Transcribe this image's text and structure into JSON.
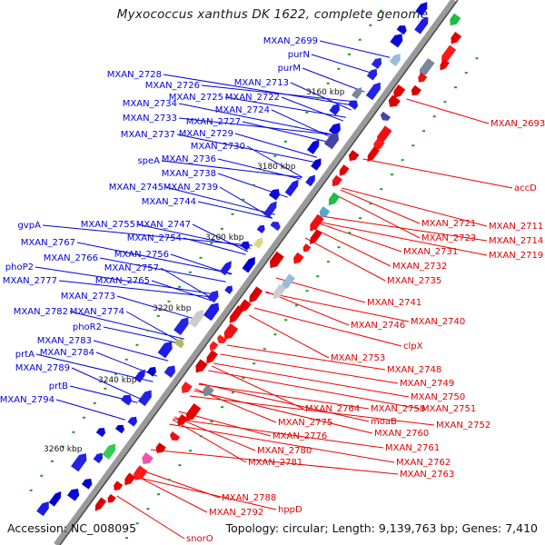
{
  "title": "Myxococcus xanthus DK 1622, complete genome",
  "footer": {
    "accession": "Accession: NC_008095",
    "topology": "Topology: circular; Length: 9,139,763 bp; Genes: 7,410"
  },
  "colors": {
    "forward": "#0000dd",
    "reverse": "#ee0000",
    "backbone": "#8a8a8a",
    "tick": "#229922",
    "cds_fwd": "#1a1ae6",
    "cds_rev": "#e61a1a"
  },
  "kbp_labels": [
    "3160 kbp",
    "3180 kbp",
    "3200 kbp",
    "3220 kbp",
    "3240 kbp",
    "3260 kbp"
  ],
  "left_labels": [
    "MXAN_2699",
    "purN",
    "purM",
    "MXAN_2713",
    "MXAN_2728",
    "MXAN_2726",
    "MXAN_2725",
    "MXAN_2722",
    "MXAN_2724",
    "MXAN_2734",
    "MXAN_2733",
    "MXAN_2727",
    "MXAN_2729",
    "MXAN_2737",
    "MXAN_2730",
    "speA",
    "MXAN_2736",
    "MXAN_2738",
    "MXAN_2745",
    "MXAN_2739",
    "MXAN_2744",
    "gvpA",
    "MXAN_2755",
    "MXAN_2747",
    "MXAN_2767",
    "MXAN_2754",
    "MXAN_2756",
    "MXAN_2766",
    "phoP2",
    "MXAN_2757",
    "MXAN_2777",
    "MXAN_2765",
    "MXAN_2773",
    "MXAN_2782",
    "MXAN_2774",
    "phoR2",
    "MXAN_2783",
    "MXAN_2784",
    "prtA",
    "MXAN_2789",
    "prtB",
    "MXAN_2794"
  ],
  "right_labels": [
    "MXAN_2693",
    "accD",
    "MXAN_2721",
    "MXAN_2711",
    "MXAN_2723",
    "MXAN_2714",
    "MXAN_2731",
    "MXAN_2719",
    "MXAN_2732",
    "MXAN_2735",
    "MXAN_2741",
    "MXAN_2740",
    "MXAN_2746",
    "clpX",
    "MXAN_2753",
    "MXAN_2748",
    "MXAN_2749",
    "MXAN_2750",
    "MXAN_2751",
    "MXAN_2764",
    "MXAN_2758",
    "MXAN_2752",
    "MXAN_2775",
    "moaB",
    "MXAN_2760",
    "MXAN_2776",
    "MXAN_2761",
    "MXAN_2780",
    "MXAN_2762",
    "MXAN_2781",
    "MXAN_2763",
    "MXAN_2788",
    "hppD",
    "MXAN_2792",
    "snorO"
  ]
}
